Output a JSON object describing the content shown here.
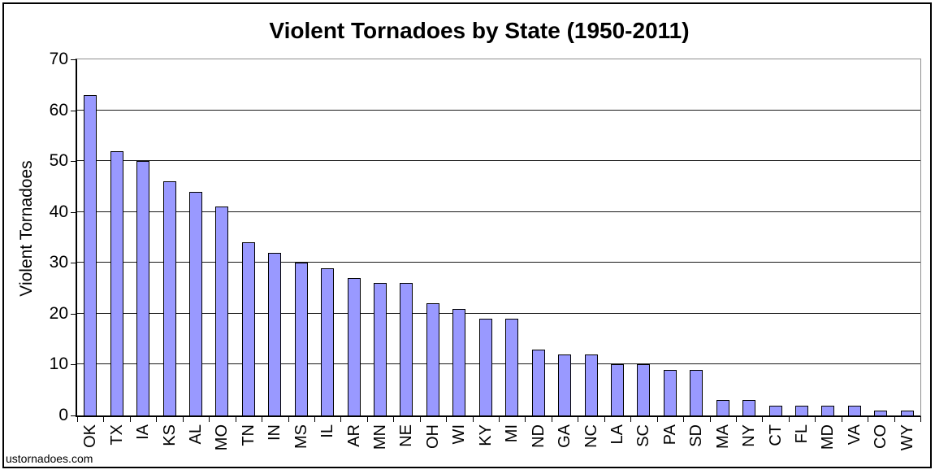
{
  "chart_data": {
    "type": "bar",
    "title": "Violent Tornadoes by State (1950-2011)",
    "xlabel": "",
    "ylabel": "Violent Tornadoes",
    "ylim": [
      0,
      70
    ],
    "ytick_step": 10,
    "grid": true,
    "legend_position": "none",
    "bar_color": "#9999FF",
    "bar_border_color": "#000000",
    "categories": [
      "OK",
      "TX",
      "IA",
      "KS",
      "AL",
      "MO",
      "TN",
      "IN",
      "MS",
      "IL",
      "AR",
      "MN",
      "NE",
      "OH",
      "WI",
      "KY",
      "MI",
      "ND",
      "GA",
      "NC",
      "LA",
      "SC",
      "PA",
      "SD",
      "MA",
      "NY",
      "CT",
      "FL",
      "MD",
      "VA",
      "CO",
      "WY"
    ],
    "values": [
      63,
      52,
      50,
      46,
      44,
      41,
      34,
      32,
      30,
      29,
      27,
      26,
      26,
      22,
      21,
      19,
      19,
      13,
      12,
      12,
      10,
      10,
      9,
      9,
      3,
      3,
      2,
      2,
      2,
      2,
      1,
      1
    ]
  },
  "footer": {
    "watermark": "ustornadoes.com"
  }
}
